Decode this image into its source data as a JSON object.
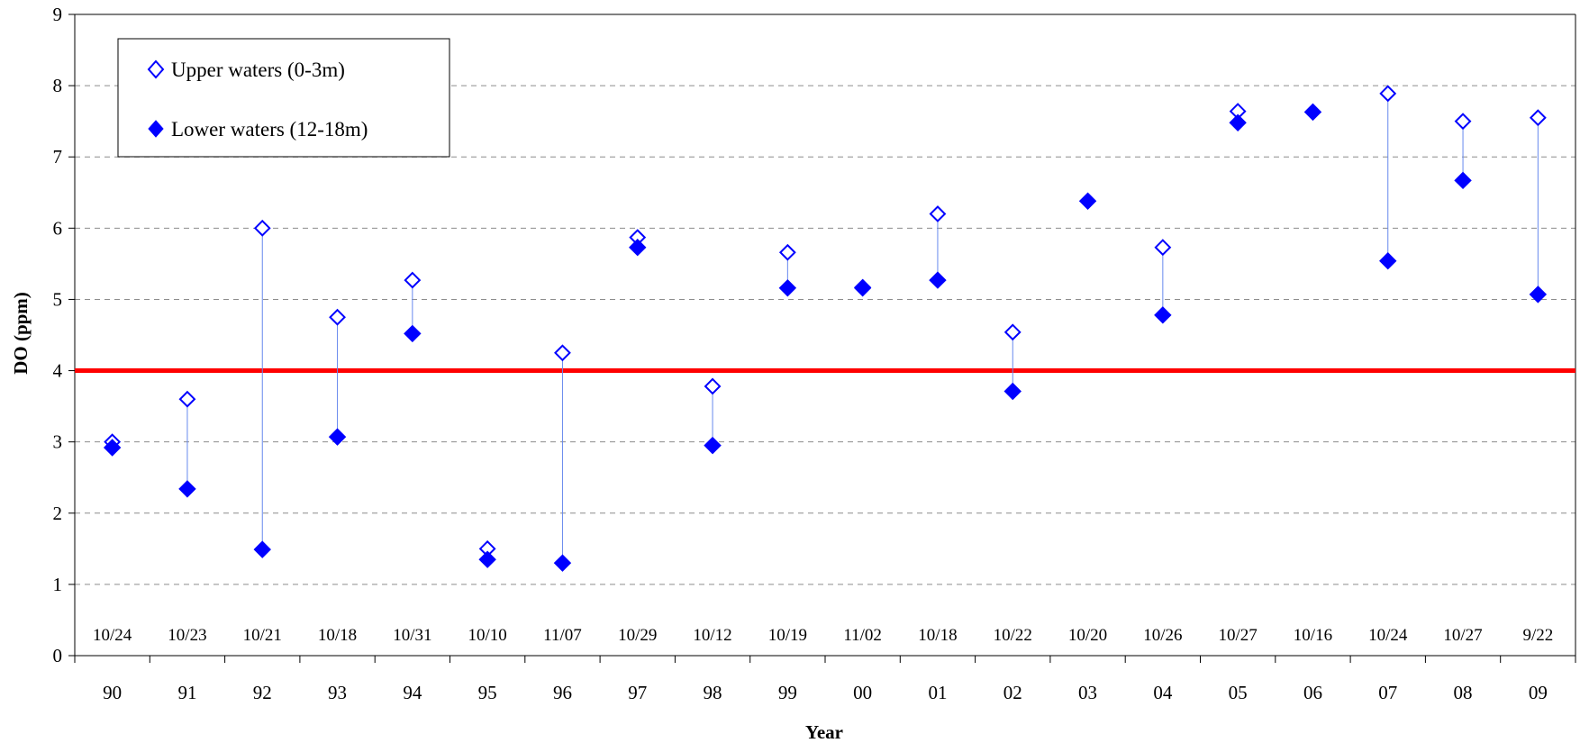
{
  "chart_data": {
    "type": "scatter",
    "xlabel": "Year",
    "ylabel": "DO (ppm)",
    "ylim": [
      0,
      9
    ],
    "yticks": [
      "0",
      "1",
      "2",
      "3",
      "4",
      "5",
      "6",
      "7",
      "8",
      "9"
    ],
    "grid": "horizontal dashed",
    "legend_position": "top-left",
    "categories": [
      "90",
      "91",
      "92",
      "93",
      "94",
      "95",
      "96",
      "97",
      "98",
      "99",
      "00",
      "01",
      "02",
      "03",
      "04",
      "05",
      "06",
      "07",
      "08",
      "09"
    ],
    "dates": [
      "10/24",
      "10/23",
      "10/21",
      "10/18",
      "10/31",
      "10/10",
      "11/07",
      "10/29",
      "10/12",
      "10/19",
      "11/02",
      "10/18",
      "10/22",
      "10/20",
      "10/26",
      "10/27",
      "10/16",
      "10/24",
      "10/27",
      "9/22"
    ],
    "series": [
      {
        "name": "Upper waters (0-3m)",
        "marker": "open-diamond",
        "color": "#0000ff",
        "values": [
          3.0,
          3.6,
          6.0,
          4.75,
          5.27,
          1.5,
          4.25,
          5.87,
          3.78,
          5.66,
          5.17,
          6.2,
          4.54,
          6.38,
          5.73,
          7.64,
          7.63,
          7.89,
          7.5,
          7.55
        ]
      },
      {
        "name": "Lower waters (12-18m)",
        "marker": "filled-diamond",
        "color": "#0000ff",
        "values": [
          2.92,
          2.34,
          1.49,
          3.07,
          4.52,
          1.35,
          1.3,
          5.73,
          2.95,
          5.16,
          5.16,
          5.27,
          3.71,
          6.38,
          4.78,
          7.48,
          7.63,
          5.54,
          6.67,
          5.07
        ]
      }
    ],
    "reference_line": {
      "value": 4,
      "color": "#ff0000"
    },
    "range_line_color": "#6688ee"
  }
}
